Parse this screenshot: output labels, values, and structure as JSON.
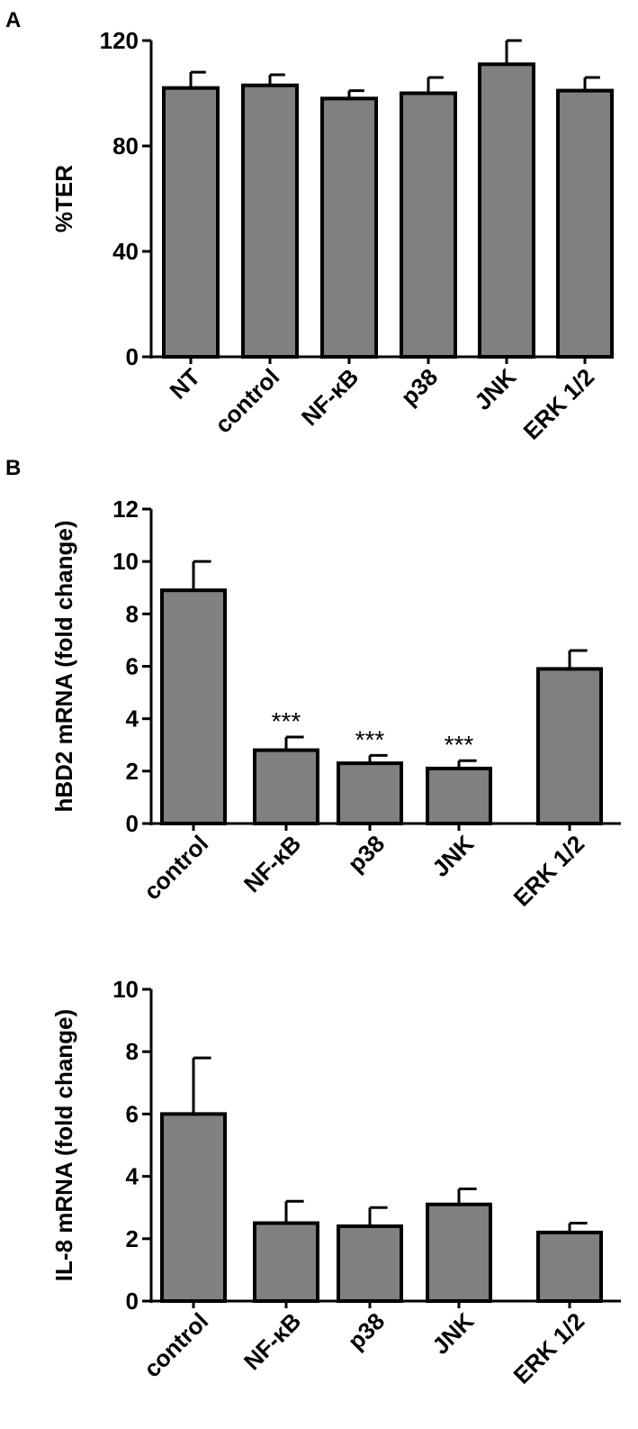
{
  "chart_data": [
    {
      "panel": "A",
      "type": "bar",
      "categories": [
        "NT",
        "control",
        "NF-κB",
        "p38",
        "JNK",
        "ERK 1/2"
      ],
      "values": [
        102,
        103,
        98,
        100,
        111,
        101
      ],
      "errors": [
        6,
        4,
        3,
        6,
        9,
        5
      ],
      "annotations": [
        "",
        "",
        "",
        "",
        "",
        ""
      ],
      "xlabel": "",
      "ylabel": "%TER",
      "ylim": [
        0,
        120
      ],
      "yticks": [
        0,
        40,
        80,
        120
      ],
      "grid": false
    },
    {
      "panel": "B",
      "type": "bar",
      "categories": [
        "control",
        "NF-κB",
        "p38",
        "JNK",
        "ERK 1/2"
      ],
      "values": [
        8.9,
        2.8,
        2.3,
        2.1,
        5.9
      ],
      "errors": [
        1.1,
        0.5,
        0.3,
        0.3,
        0.7
      ],
      "annotations": [
        "",
        "***",
        "***",
        "***",
        ""
      ],
      "xlabel": "",
      "ylabel": "hBD2 mRNA (fold change)",
      "ylim": [
        0,
        12
      ],
      "yticks": [
        0,
        2,
        4,
        6,
        8,
        10,
        12
      ],
      "grid": false
    },
    {
      "panel": "",
      "type": "bar",
      "categories": [
        "control",
        "NF-κB",
        "p38",
        "JNK",
        "ERK 1/2"
      ],
      "values": [
        6.0,
        2.5,
        2.4,
        3.1,
        2.2
      ],
      "errors": [
        1.8,
        0.7,
        0.6,
        0.5,
        0.3
      ],
      "annotations": [
        "",
        "",
        "",
        "",
        ""
      ],
      "xlabel": "",
      "ylabel": "IL-8 mRNA (fold change)",
      "ylim": [
        0,
        10
      ],
      "yticks": [
        0,
        2,
        4,
        6,
        8,
        10
      ],
      "grid": false
    }
  ],
  "colors": {
    "bar_fill": "#808080",
    "bar_stroke": "#000000",
    "axis": "#000000",
    "background": "#ffffff"
  }
}
